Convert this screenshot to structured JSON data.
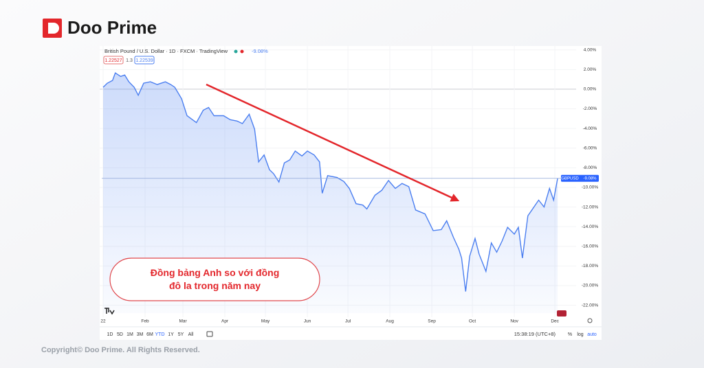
{
  "brand": {
    "name": "Doo Prime",
    "copyright": "Copyright© Doo Prime. All Rights Reserved."
  },
  "header": {
    "symbol": "British Pound / U.S. Dollar · 1D · FXCM · TradingView",
    "change": "-9.08%",
    "bid": "1.22527",
    "spread": "1.3",
    "ask": "1.22539",
    "ticker": "GBPUSD"
  },
  "toolbar": {
    "ranges": [
      "1D",
      "5D",
      "1M",
      "3M",
      "6M",
      "YTD",
      "1Y",
      "5Y",
      "All"
    ],
    "active": "YTD",
    "time": "15:38:19 (UTC+8)",
    "options": [
      "%",
      "log",
      "auto"
    ]
  },
  "chart_data": {
    "type": "line",
    "color": "#4a7ef0",
    "annotation": "Đồng bảng Anh so với đồng đô la trong năm nay",
    "x": [
      0,
      3,
      7,
      9,
      13,
      16,
      19,
      23,
      26,
      30,
      35,
      40,
      46,
      50,
      53,
      58,
      62,
      69,
      74,
      78,
      82,
      89,
      94,
      99,
      103,
      108,
      112,
      115,
      119,
      123,
      126,
      130,
      134,
      138,
      142,
      147,
      151,
      156,
      160,
      162,
      166,
      173,
      178,
      182,
      187,
      192,
      195,
      201,
      206,
      211,
      216,
      221,
      226,
      231,
      238,
      244,
      250,
      254,
      259,
      263,
      265,
      268,
      271,
      275,
      278,
      283,
      287,
      291,
      295,
      299,
      304,
      307,
      310,
      314,
      317,
      322,
      326,
      330,
      333,
      336
    ],
    "values": [
      0.2,
      0.6,
      0.9,
      1.66,
      1.3,
      1.45,
      0.76,
      0.2,
      -0.62,
      0.62,
      0.76,
      0.48,
      0.76,
      0.48,
      0.2,
      -0.97,
      -2.7,
      -3.4,
      -2.14,
      -1.86,
      -2.7,
      -2.7,
      -3.1,
      -3.24,
      -3.5,
      -2.55,
      -4.07,
      -7.4,
      -6.7,
      -8.2,
      -8.6,
      -9.45,
      -7.5,
      -7.2,
      -6.3,
      -6.8,
      -6.3,
      -6.7,
      -7.4,
      -10.6,
      -8.8,
      -9.0,
      -9.4,
      -10.1,
      -11.66,
      -11.8,
      -12.2,
      -10.8,
      -10.3,
      -9.3,
      -10.1,
      -9.6,
      -9.93,
      -12.3,
      -12.7,
      -14.4,
      -14.3,
      -13.4,
      -15.1,
      -16.3,
      -17.2,
      -20.6,
      -17.0,
      -15.2,
      -16.8,
      -18.55,
      -15.66,
      -16.6,
      -15.45,
      -14.07,
      -14.76,
      -14.07,
      -17.2,
      -12.9,
      -12.3,
      -11.3,
      -12.0,
      -10.1,
      -11.3,
      -9.08
    ],
    "xlim": [
      -1,
      338
    ],
    "xticks": [
      {
        "value": 0,
        "label": "22"
      },
      {
        "value": 31,
        "label": "Feb"
      },
      {
        "value": 59,
        "label": "Mar"
      },
      {
        "value": 90,
        "label": "Apr"
      },
      {
        "value": 120,
        "label": "May"
      },
      {
        "value": 151,
        "label": "Jun"
      },
      {
        "value": 181,
        "label": "Jul"
      },
      {
        "value": 212,
        "label": "Aug"
      },
      {
        "value": 243,
        "label": "Sep"
      },
      {
        "value": 273,
        "label": "Oct"
      },
      {
        "value": 304,
        "label": "Nov"
      },
      {
        "value": 334,
        "label": "Dec"
      }
    ],
    "ylim": [
      -22.8,
      4.4
    ],
    "yticks": [
      {
        "value": 4,
        "label": "4.00%"
      },
      {
        "value": 2,
        "label": "2.00%"
      },
      {
        "value": 0,
        "label": "0.00%"
      },
      {
        "value": -2,
        "label": "-2.00%"
      },
      {
        "value": -4,
        "label": "-4.00%"
      },
      {
        "value": -6,
        "label": "-6.00%"
      },
      {
        "value": -8,
        "label": "-8.00%"
      },
      {
        "value": -10,
        "label": "-10.00%"
      },
      {
        "value": -12,
        "label": "-12.00%"
      },
      {
        "value": -14,
        "label": "-14.00%"
      },
      {
        "value": -16,
        "label": "-16.00%"
      },
      {
        "value": -18,
        "label": "-18.00%"
      },
      {
        "value": -20,
        "label": "-20.00%"
      },
      {
        "value": -22,
        "label": "-22.00%"
      }
    ]
  }
}
